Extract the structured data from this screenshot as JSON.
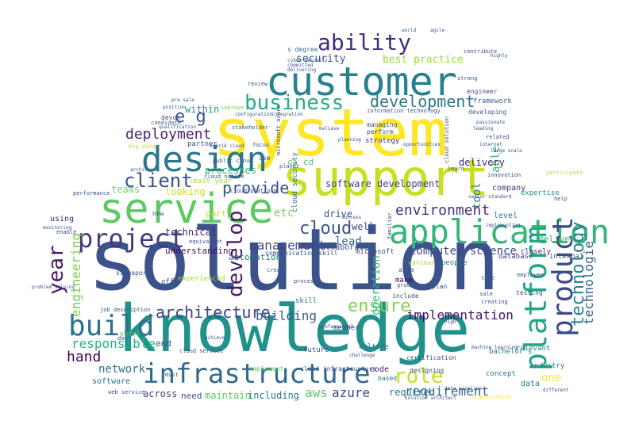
{
  "words": [
    {
      "text": "solution",
      "color": "#3b528b"
    },
    {
      "text": "knowledge",
      "color": "#21918c"
    },
    {
      "text": "system",
      "color": "#fde725"
    },
    {
      "text": "support",
      "color": "#c8e020"
    },
    {
      "text": "customer",
      "color": "#26828e"
    },
    {
      "text": "service",
      "color": "#5ec962"
    },
    {
      "text": "application",
      "color": "#35b779"
    },
    {
      "text": "design",
      "color": "#2a788e"
    },
    {
      "text": "infrastructure",
      "color": "#31688e"
    },
    {
      "text": "build",
      "color": "#2c728e"
    },
    {
      "text": "project",
      "color": "#443983"
    },
    {
      "text": "platform",
      "color": "#21a585"
    },
    {
      "text": "product",
      "color": "#3e4989"
    },
    {
      "text": "year",
      "color": "#48186a"
    },
    {
      "text": "ability",
      "color": "#472d7b"
    },
    {
      "text": "business",
      "color": "#27ad81"
    },
    {
      "text": "development",
      "color": "#2a788e"
    },
    {
      "text": "architecture",
      "color": "#414487"
    },
    {
      "text": "develop",
      "color": "#481b6d"
    },
    {
      "text": "role",
      "color": "#c2df23"
    },
    {
      "text": "ensure",
      "color": "#84d44b"
    },
    {
      "text": "technology",
      "color": "#26828e"
    },
    {
      "text": "client",
      "color": "#3b528b"
    },
    {
      "text": "deployment",
      "color": "#482475"
    },
    {
      "text": "cloud",
      "color": "#3b528b"
    },
    {
      "text": "environment",
      "color": "#46307e"
    },
    {
      "text": "provide",
      "color": "#3b528b"
    },
    {
      "text": "e g",
      "color": "#3b528b"
    },
    {
      "text": "engineering",
      "color": "#7ad151"
    },
    {
      "text": "technologie",
      "color": "#33638d"
    },
    {
      "text": "implementation",
      "color": "#471063"
    },
    {
      "text": "responsible",
      "color": "#29af7f"
    },
    {
      "text": "requirement",
      "color": "#31688e"
    },
    {
      "text": "hand",
      "color": "#440154"
    },
    {
      "text": "building",
      "color": "#355f8d"
    },
    {
      "text": "aws",
      "color": "#5ec962"
    },
    {
      "text": "azure",
      "color": "#3e4989"
    },
    {
      "text": "management",
      "color": "#3e4989"
    },
    {
      "text": "operation",
      "color": "#35b779"
    },
    {
      "text": "security",
      "color": "#39568c"
    },
    {
      "text": "best practice",
      "color": "#a0da39"
    },
    {
      "text": "computer science",
      "color": "#3f4788"
    },
    {
      "text": "network",
      "color": "#2c728e"
    },
    {
      "text": "etc",
      "color": "#7ad151"
    },
    {
      "text": "lead",
      "color": "#31688e"
    },
    {
      "text": "well",
      "color": "#3e4989"
    },
    {
      "text": "required",
      "color": "#2c728e"
    },
    {
      "text": "maintain",
      "color": "#5ec962"
    },
    {
      "text": "including",
      "color": "#2a788e"
    },
    {
      "text": "across",
      "color": "#433e85"
    },
    {
      "text": "within",
      "color": "#1f988b"
    },
    {
      "text": "teams",
      "color": "#7ad151"
    },
    {
      "text": "looking",
      "color": "#c2df23"
    },
    {
      "text": "processes",
      "color": "#35b779"
    },
    {
      "text": "tool",
      "color": "#2a788e"
    },
    {
      "text": "able",
      "color": "#35b779"
    },
    {
      "text": "technical",
      "color": "#482878"
    },
    {
      "text": "software development",
      "color": "#404387"
    },
    {
      "text": "one",
      "color": "#fde725"
    },
    {
      "text": "drive",
      "color": "#3b528b"
    },
    {
      "text": "part",
      "color": "#c2df23"
    },
    {
      "text": "delivery",
      "color": "#482475"
    },
    {
      "text": "automation",
      "color": "#2a788e"
    },
    {
      "text": "ci cd",
      "color": "#5ec962"
    },
    {
      "text": "end",
      "color": "#3b528b"
    },
    {
      "text": "need",
      "color": "#3b528b"
    },
    {
      "text": "understanding",
      "color": "#471063"
    },
    {
      "text": "company",
      "color": "#46317e"
    },
    {
      "text": "deliver",
      "color": "#35b779"
    },
    {
      "text": "level",
      "color": "#2c728e"
    },
    {
      "text": "data",
      "color": "#2a788e"
    },
    {
      "text": "software",
      "color": "#2c728e"
    },
    {
      "text": "using",
      "color": "#482475"
    },
    {
      "text": "collaborate",
      "color": "#3b528b"
    },
    {
      "text": "cloud security",
      "color": "#2a788e"
    },
    {
      "text": "framework",
      "color": "#33638d"
    },
    {
      "text": "strategy",
      "color": "#46307e"
    },
    {
      "text": "industry",
      "color": "#287c8e"
    },
    {
      "text": "concept",
      "color": "#2a788e"
    },
    {
      "text": "code",
      "color": "#481b6d"
    },
    {
      "text": "member",
      "color": "#404387"
    },
    {
      "text": "experienced",
      "color": "#a0da39"
    },
    {
      "text": "make",
      "color": "#440154"
    },
    {
      "text": "people",
      "color": "#2a788e"
    },
    {
      "text": "bachelor s",
      "color": "#287c8e"
    },
    {
      "text": "internal",
      "color": "#3b528b"
    },
    {
      "text": "relevant",
      "color": "#287c8e"
    },
    {
      "text": "culture",
      "color": "#2c728e"
    },
    {
      "text": "microsoft",
      "color": "#3b528b"
    },
    {
      "text": "offer",
      "color": "#3b528b"
    },
    {
      "text": "skill",
      "color": "#2c728e"
    },
    {
      "text": "expertise",
      "color": "#21918c"
    },
    {
      "text": "database",
      "color": "#433e85"
    },
    {
      "text": "testing",
      "color": "#3b528b"
    },
    {
      "text": "closely",
      "color": "#482475"
    },
    {
      "text": "future",
      "color": "#3b528b"
    },
    {
      "text": "singapore",
      "color": "#3b528b"
    },
    {
      "text": "based",
      "color": "#2c728e"
    },
    {
      "text": "new",
      "color": "#3b528b"
    },
    {
      "text": "communication skill",
      "color": "#3b528b"
    },
    {
      "text": "cloud infrastructure",
      "color": "#3b528b"
    },
    {
      "text": "developing",
      "color": "#3b528b"
    },
    {
      "text": "engineer",
      "color": "#3b528b"
    },
    {
      "text": "partner",
      "color": "#3b528b"
    },
    {
      "text": "least year",
      "color": "#a0da39"
    },
    {
      "text": "s degree",
      "color": "#31688e"
    },
    {
      "text": "implement",
      "color": "#5ec962"
    },
    {
      "text": "managing",
      "color": "#3b528b"
    },
    {
      "text": "perform",
      "color": "#3b528b"
    },
    {
      "text": "devop",
      "color": "#3b528b"
    },
    {
      "text": "contribute",
      "color": "#3b528b"
    },
    {
      "text": "information technology",
      "color": "#3b528b"
    },
    {
      "text": "strong",
      "color": "#3b528b"
    },
    {
      "text": "cloud platform",
      "color": "#3b528b"
    },
    {
      "text": "public cloud",
      "color": "#3b528b"
    },
    {
      "text": "cloud native",
      "color": "#3b528b"
    },
    {
      "text": "candidate",
      "color": "#3b528b"
    },
    {
      "text": "improve",
      "color": "#7ad151"
    },
    {
      "text": "big data",
      "color": "#c2df23"
    },
    {
      "text": "focus",
      "color": "#3b528b"
    },
    {
      "text": "enable",
      "color": "#3b528b"
    },
    {
      "text": "monitoring",
      "color": "#3b528b"
    },
    {
      "text": "performance",
      "color": "#3b528b"
    },
    {
      "text": "problem solving",
      "color": "#3b528b"
    },
    {
      "text": "job description",
      "color": "#3b528b"
    },
    {
      "text": "web service",
      "color": "#3b528b"
    },
    {
      "text": "cloud service",
      "color": "#3b528b"
    },
    {
      "text": "certification",
      "color": "#3b528b"
    },
    {
      "text": "employee",
      "color": "#3b528b"
    },
    {
      "text": "create",
      "color": "#3b528b"
    },
    {
      "text": "global",
      "color": "#5ec962"
    },
    {
      "text": "equivalent",
      "color": "#3b528b"
    },
    {
      "text": "innovation",
      "color": "#3b528b"
    },
    {
      "text": "senior standard",
      "color": "#3b528b"
    },
    {
      "text": "participate",
      "color": "#c2df23"
    },
    {
      "text": "help",
      "color": "#3b528b"
    },
    {
      "text": "various",
      "color": "#a0da39"
    },
    {
      "text": "area",
      "color": "#3b528b"
    },
    {
      "text": "include",
      "color": "#3b528b"
    },
    {
      "text": "process",
      "color": "#3b528b"
    },
    {
      "text": "value",
      "color": "#3b528b"
    },
    {
      "text": "group",
      "color": "#3b528b"
    },
    {
      "text": "designing",
      "color": "#3b528b"
    },
    {
      "text": "world",
      "color": "#3b528b"
    },
    {
      "text": "agile",
      "color": "#3b528b"
    },
    {
      "text": "highly",
      "color": "#3b528b"
    },
    {
      "text": "pre sale",
      "color": "#3b528b"
    },
    {
      "text": "position",
      "color": "#3b528b"
    },
    {
      "text": "qualification",
      "color": "#3b528b"
    },
    {
      "text": "review",
      "color": "#3b528b"
    },
    {
      "text": "stakeholder",
      "color": "#3b528b"
    },
    {
      "text": "architect",
      "color": "#3b528b"
    },
    {
      "text": "use",
      "color": "#3b528b"
    },
    {
      "text": "player",
      "color": "#3b528b"
    },
    {
      "text": "related",
      "color": "#3b528b"
    },
    {
      "text": "large scale",
      "color": "#3b528b"
    },
    {
      "text": "passionate",
      "color": "#3b528b"
    },
    {
      "text": "opportunities",
      "color": "#3b528b"
    },
    {
      "text": "learn",
      "color": "#3b528b"
    },
    {
      "text": "planning",
      "color": "#3b528b"
    },
    {
      "text": "committed",
      "color": "#3b528b"
    },
    {
      "text": "professional",
      "color": "#3b528b"
    },
    {
      "text": "cloud solution",
      "color": "#3b528b"
    },
    {
      "text": "microsoft azure",
      "color": "#3b528b"
    },
    {
      "text": "hybrid cloud",
      "color": "#3b528b"
    },
    {
      "text": "implementing",
      "color": "#3b528b"
    },
    {
      "text": "internet",
      "color": "#3b528b"
    },
    {
      "text": "leading",
      "color": "#3b528b"
    },
    {
      "text": "creating",
      "color": "#3b528b"
    },
    {
      "text": "machine learning",
      "color": "#3b528b"
    },
    {
      "text": "sale",
      "color": "#3b528b"
    },
    {
      "text": "take",
      "color": "#3b528b"
    },
    {
      "text": "plan",
      "color": "#3b528b"
    },
    {
      "text": "day",
      "color": "#3b528b"
    },
    {
      "text": "must",
      "color": "#3b528b"
    },
    {
      "text": "configuration",
      "color": "#3b528b"
    },
    {
      "text": "integration",
      "color": "#3b528b"
    },
    {
      "text": "cyber security",
      "color": "#3b528b"
    },
    {
      "text": "different",
      "color": "#3b528b"
    },
    {
      "text": "organization",
      "color": "#fde725"
    },
    {
      "text": "familiar",
      "color": "#3b528b"
    },
    {
      "text": "success",
      "color": "#3b528b"
    },
    {
      "text": "believe",
      "color": "#3b528b"
    },
    {
      "text": "achieve",
      "color": "#3b528b"
    },
    {
      "text": "challenge",
      "color": "#3b528b"
    },
    {
      "text": "high",
      "color": "#3b528b"
    },
    {
      "text": "solution architect",
      "color": "#3b528b"
    },
    {
      "text": "data pipeline",
      "color": "#3b528b"
    },
    {
      "text": "delivering",
      "color": "#3b528b"
    }
  ]
}
